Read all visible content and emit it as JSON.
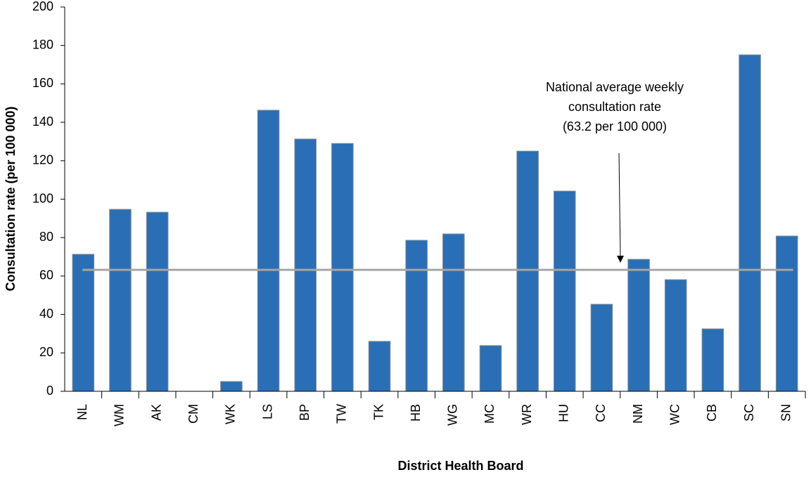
{
  "chart_data": {
    "type": "bar",
    "x_label": "District Health Board",
    "y_label": "Consultation rate (per 100 000)",
    "categories": [
      "NL",
      "WM",
      "AK",
      "CM",
      "WK",
      "LS",
      "BP",
      "TW",
      "TK",
      "HB",
      "WG",
      "MC",
      "WR",
      "HU",
      "CC",
      "NM",
      "WC",
      "CB",
      "SC",
      "SN"
    ],
    "values": [
      71.3,
      94.7,
      93.2,
      0,
      5.1,
      146.3,
      131.3,
      129,
      26,
      78.6,
      81.9,
      23.8,
      125,
      104.2,
      45.3,
      68.7,
      58.1,
      32.5,
      175.1,
      80.8
    ],
    "color": "#2a6fb5",
    "reference_line": {
      "value": 63.2,
      "color": "#a6a6a6",
      "annotation": [
        "National average weekly",
        "consultation rate",
        "(63.2 per 100 000)"
      ]
    },
    "ylim": [
      0,
      200
    ],
    "yticks": [
      0,
      20,
      40,
      60,
      80,
      100,
      120,
      140,
      160,
      180,
      200
    ],
    "grid": false
  }
}
